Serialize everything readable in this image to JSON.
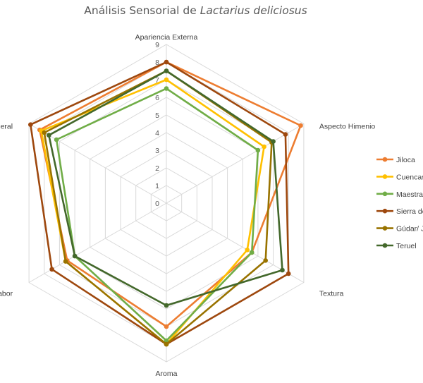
{
  "chart_data": {
    "type": "radar",
    "title": {
      "prefix": "Análisis Sensorial de ",
      "italic": "Lactarius deliciosus"
    },
    "axes": [
      "Apariencia Externa",
      "Aspecto Himenio",
      "Textura",
      "Aroma",
      "Sabor",
      "General"
    ],
    "range": [
      0,
      9
    ],
    "ticks": [
      "0",
      "1",
      "2",
      "3",
      "4",
      "5",
      "6",
      "7",
      "8",
      "9"
    ],
    "series": [
      {
        "name": "Jiloca",
        "color": "#ed7d31",
        "values": [
          8.0,
          8.8,
          5.6,
          7.0,
          6.5,
          8.3
        ]
      },
      {
        "name": "Cuencas",
        "color": "#ffc000",
        "values": [
          7.0,
          6.4,
          5.3,
          8.0,
          6.6,
          8.2
        ]
      },
      {
        "name": "Maestra",
        "color": "#70ad47",
        "values": [
          6.5,
          6.0,
          5.6,
          7.8,
          6.0,
          7.2
        ]
      },
      {
        "name": "Sierra de",
        "color": "#9e480e",
        "values": [
          8.0,
          7.8,
          8.0,
          8.0,
          7.5,
          8.9
        ]
      },
      {
        "name": "Gúdar/ J.",
        "color": "#997300",
        "values": [
          7.5,
          6.9,
          6.5,
          8.0,
          6.6,
          8.0
        ]
      },
      {
        "name": "Teruel",
        "color": "#43682b",
        "values": [
          7.5,
          7.0,
          7.6,
          5.8,
          6.0,
          7.7
        ]
      }
    ],
    "gridlines": true,
    "legend_position": "right"
  }
}
